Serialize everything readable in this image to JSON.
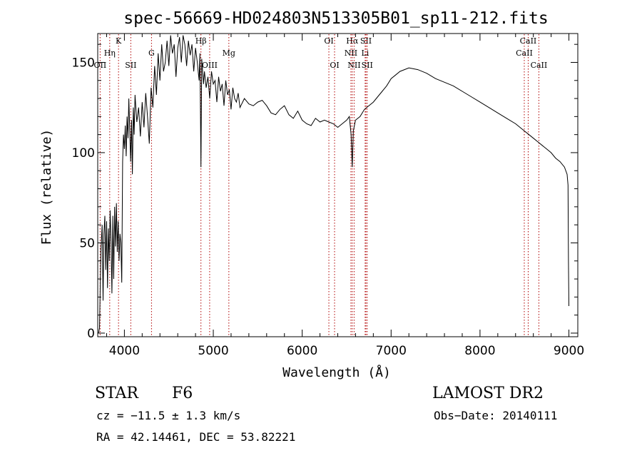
{
  "chart_data": {
    "type": "line",
    "title": "spec-56669-HD024803N513305B01_sp11-212.fits",
    "xlabel": "Wavelength (Å)",
    "ylabel": "Flux (relative)",
    "xlim": [
      3700,
      9100
    ],
    "ylim": [
      -2,
      166
    ],
    "x_ticks": [
      4000,
      5000,
      6000,
      7000,
      8000,
      9000
    ],
    "y_ticks": [
      0,
      50,
      100,
      150
    ],
    "grid": false,
    "series": [
      {
        "color": "#000000",
        "x": [
          3710,
          3720,
          3735,
          3750,
          3760,
          3770,
          3780,
          3790,
          3800,
          3810,
          3820,
          3830,
          3840,
          3850,
          3860,
          3870,
          3880,
          3890,
          3900,
          3910,
          3920,
          3930,
          3940,
          3950,
          3960,
          3970,
          3980,
          3990,
          4000,
          4010,
          4020,
          4030,
          4040,
          4050,
          4060,
          4070,
          4080,
          4090,
          4100,
          4110,
          4120,
          4140,
          4160,
          4180,
          4200,
          4220,
          4240,
          4260,
          4280,
          4300,
          4320,
          4340,
          4360,
          4380,
          4400,
          4420,
          4440,
          4460,
          4480,
          4500,
          4520,
          4540,
          4560,
          4580,
          4600,
          4620,
          4640,
          4660,
          4680,
          4700,
          4720,
          4740,
          4760,
          4780,
          4800,
          4820,
          4840,
          4850,
          4861,
          4870,
          4890,
          4900,
          4920,
          4940,
          4960,
          4980,
          5000,
          5020,
          5040,
          5060,
          5080,
          5100,
          5120,
          5140,
          5160,
          5180,
          5200,
          5220,
          5240,
          5260,
          5280,
          5300,
          5350,
          5400,
          5450,
          5500,
          5550,
          5600,
          5650,
          5700,
          5750,
          5800,
          5850,
          5900,
          5950,
          6000,
          6050,
          6100,
          6150,
          6200,
          6250,
          6300,
          6350,
          6400,
          6450,
          6500,
          6530,
          6550,
          6563,
          6575,
          6600,
          6650,
          6700,
          6750,
          6800,
          6850,
          6900,
          6950,
          7000,
          7050,
          7100,
          7150,
          7200,
          7300,
          7400,
          7500,
          7600,
          7700,
          7800,
          7900,
          8000,
          8100,
          8200,
          8300,
          8400,
          8500,
          8550,
          8600,
          8650,
          8700,
          8750,
          8800,
          8850,
          8900,
          8950,
          8980,
          8990,
          8995,
          9000
        ],
        "y": [
          0,
          3,
          45,
          60,
          18,
          55,
          65,
          35,
          62,
          25,
          58,
          40,
          68,
          50,
          22,
          65,
          30,
          70,
          48,
          72,
          45,
          62,
          40,
          55,
          50,
          28,
          95,
          110,
          102,
          115,
          98,
          120,
          108,
          130,
          112,
          95,
          118,
          88,
          125,
          110,
          132,
          117,
          125,
          109,
          128,
          114,
          133,
          120,
          105,
          136,
          125,
          148,
          132,
          155,
          140,
          160,
          145,
          150,
          162,
          148,
          165,
          155,
          160,
          142,
          158,
          164,
          150,
          165,
          160,
          148,
          162,
          154,
          160,
          145,
          158,
          150,
          140,
          155,
          92,
          152,
          138,
          145,
          136,
          142,
          130,
          145,
          138,
          140,
          128,
          142,
          134,
          138,
          126,
          140,
          132,
          135,
          124,
          136,
          130,
          128,
          133,
          125,
          130,
          127,
          126,
          128,
          129,
          126,
          122,
          121,
          124,
          126,
          121,
          119,
          123,
          118,
          116,
          115,
          119,
          117,
          118,
          117,
          116,
          114,
          116,
          118,
          120,
          110,
          92,
          112,
          118,
          120,
          124,
          126,
          128,
          131,
          134,
          137,
          141,
          143,
          145,
          146,
          147,
          146,
          144,
          141,
          139,
          137,
          134,
          131,
          128,
          125,
          122,
          119,
          116,
          112,
          110,
          108,
          106,
          104,
          102,
          100,
          97,
          95,
          92,
          88,
          82,
          40,
          15
        ]
      }
    ],
    "line_markers": [
      {
        "label": "OII",
        "x": 3727,
        "row": 3
      },
      {
        "label": "Hη",
        "x": 3835,
        "row": 2
      },
      {
        "label": "K",
        "x": 3934,
        "row": 1
      },
      {
        "label": "SII",
        "x": 4072,
        "row": 3
      },
      {
        "label": "G",
        "x": 4305,
        "row": 2
      },
      {
        "label": "Hβ",
        "x": 4861,
        "row": 1
      },
      {
        "label": "OIII",
        "x": 4959,
        "row": 3
      },
      {
        "label": "Mg",
        "x": 5175,
        "row": 2
      },
      {
        "label": "OI",
        "x": 6300,
        "row": 1
      },
      {
        "label": "OI",
        "x": 6364,
        "row": 3
      },
      {
        "label": "Hα",
        "x": 6563,
        "row": 1
      },
      {
        "label": "NII",
        "x": 6548,
        "row": 2
      },
      {
        "label": "NII",
        "x": 6584,
        "row": 3
      },
      {
        "label": "SII",
        "x": 6717,
        "row": 1
      },
      {
        "label": "Li",
        "x": 6708,
        "row": 2
      },
      {
        "label": "SII",
        "x": 6731,
        "row": 3
      },
      {
        "label": "CaII",
        "x": 8542,
        "row": 1
      },
      {
        "label": "CaII",
        "x": 8498,
        "row": 2
      },
      {
        "label": "CaII",
        "x": 8662,
        "row": 3
      }
    ]
  },
  "info": {
    "object_class": "STAR",
    "subclass": "F6",
    "survey": "LAMOST DR2",
    "cz_label": "cz = −11.5 ± 1.3 km/s",
    "obs_date": "Obs−Date: 20140111",
    "radec": "RA =  42.14461, DEC =  53.82221"
  }
}
